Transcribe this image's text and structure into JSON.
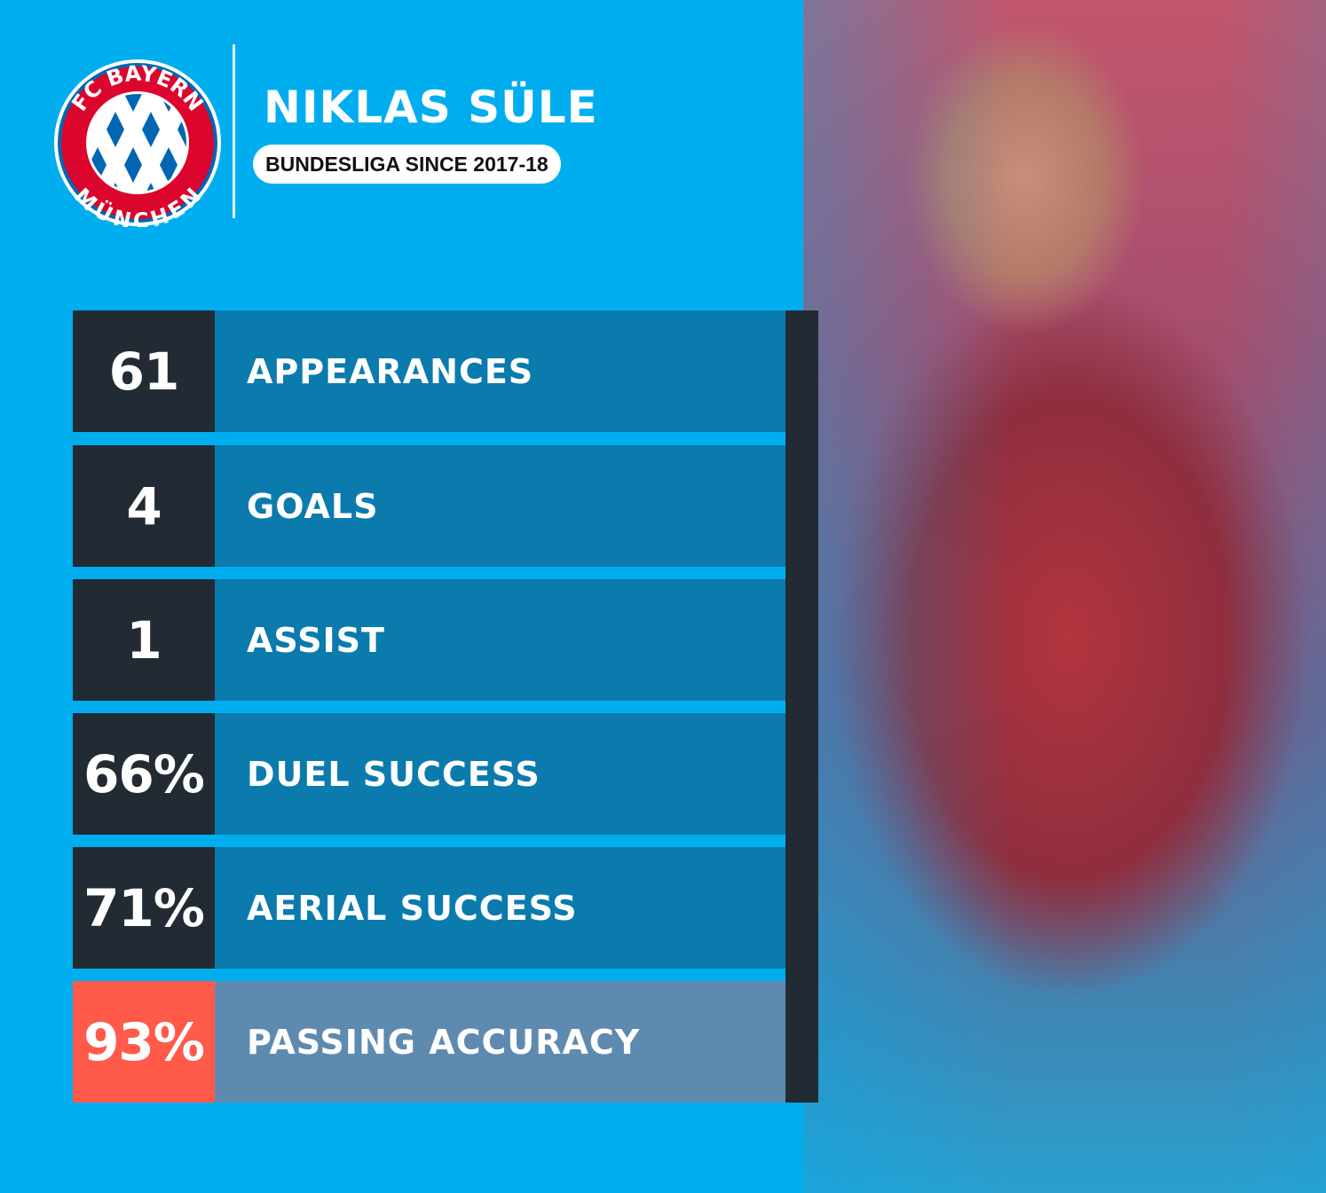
{
  "header": {
    "logo_text_top": "FC BAYERN",
    "logo_text_bottom": "MÜNCHEN",
    "player_name": "NIKLAS SÜLE",
    "subtitle": "BUNDESLIGA SINCE 2017-18"
  },
  "stats": [
    {
      "value": "61",
      "label": "APPEARANCES"
    },
    {
      "value": "4",
      "label": "GOALS"
    },
    {
      "value": "1",
      "label": "ASSIST"
    },
    {
      "value": "66%",
      "label": "DUEL SUCCESS"
    },
    {
      "value": "71%",
      "label": "AERIAL SUCCESS"
    },
    {
      "value": "93%",
      "label": "PASSING ACCURACY",
      "highlighted": true
    }
  ],
  "colors": {
    "background": "#00aeef",
    "value_box": "#222b33",
    "label_box": "#0b7bad",
    "highlight_value": "#ff5a4a",
    "highlight_label": "#5f8ab0",
    "club_red": "#dc052d",
    "club_blue": "#0066b2"
  }
}
